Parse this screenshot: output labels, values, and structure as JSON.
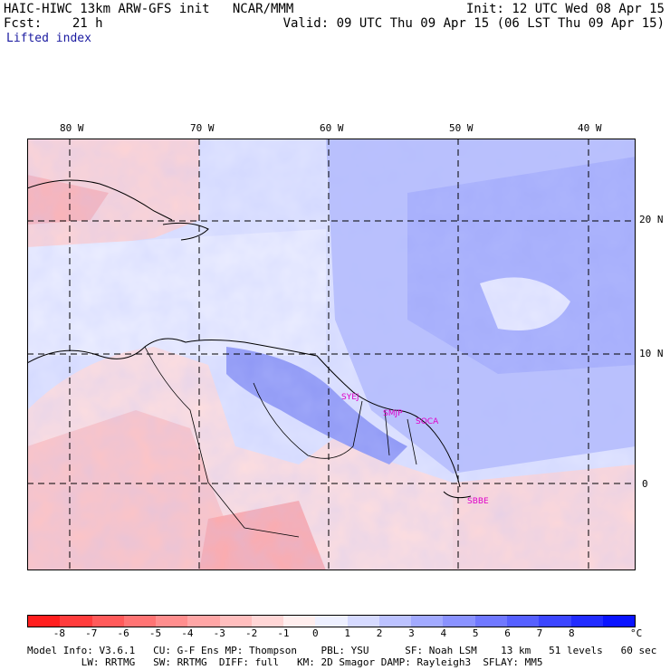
{
  "header": {
    "title_line1": "HAIC-HIWC 13km ARW-GFS init   NCAR/MMM",
    "title_line2": "Fcst:    21 h",
    "field_name": "Lifted index",
    "init": "Init: 12 UTC Wed 08 Apr 15",
    "valid": "Valid: 09 UTC Thu 09 Apr 15 (06 LST Thu 09 Apr 15)"
  },
  "axes": {
    "longitudes": [
      "80 W",
      "70 W",
      "60 W",
      "50 W",
      "40 W"
    ],
    "latitudes": [
      "20 N",
      "10 N",
      "0"
    ]
  },
  "stations": [
    "SYEJ",
    "SMJP",
    "SOCA",
    "SBBE"
  ],
  "colorbar": {
    "unit": "°C",
    "ticks": [
      "-8",
      "-7",
      "-6",
      "-5",
      "-4",
      "-3",
      "-2",
      "-1",
      "0",
      "1",
      "2",
      "3",
      "4",
      "5",
      "6",
      "7",
      "8"
    ],
    "colors": [
      "#ff1e1e",
      "#ff3c3c",
      "#ff5a5a",
      "#ff7474",
      "#ff8e8e",
      "#ffa6a6",
      "#ffbebe",
      "#ffd6d6",
      "#ffeeee",
      "#eef0ff",
      "#d6daff",
      "#bcc2ff",
      "#a2aaff",
      "#8a92ff",
      "#7078ff",
      "#5660ff",
      "#3c46ff",
      "#222cff",
      "#0a14ff"
    ]
  },
  "footer": {
    "line1": "Model Info: V3.6.1   CU: G-F Ens MP: Thompson    PBL: YSU      SF: Noah LSM    13 km   51 levels   60 sec",
    "line2": "         LW: RRTMG   SW: RRTMG  DIFF: full   KM: 2D Smagor DAMP: Rayleigh3  SFLAY: MM5"
  }
}
